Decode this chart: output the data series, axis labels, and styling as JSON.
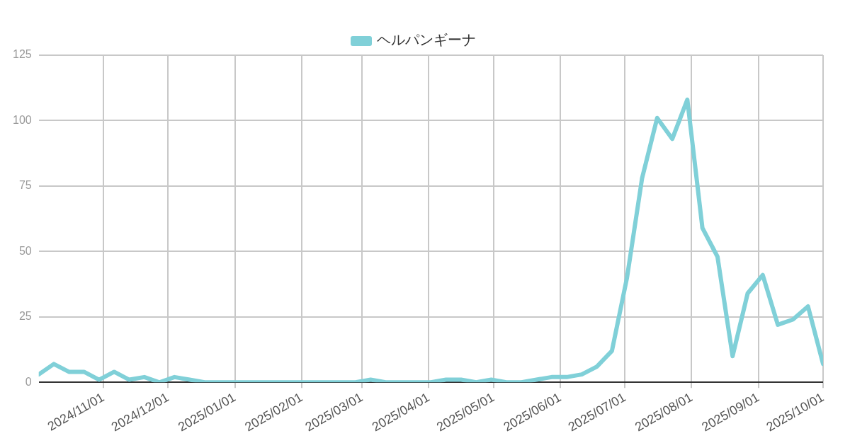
{
  "chart_data": {
    "type": "line",
    "x": [
      "2024-10-02",
      "2024-10-09",
      "2024-10-16",
      "2024-10-23",
      "2024-10-30",
      "2024-11-06",
      "2024-11-13",
      "2024-11-20",
      "2024-11-27",
      "2024-12-04",
      "2024-12-11",
      "2024-12-18",
      "2024-12-25",
      "2025-01-01",
      "2025-01-08",
      "2025-01-15",
      "2025-01-22",
      "2025-01-29",
      "2025-02-05",
      "2025-02-12",
      "2025-02-19",
      "2025-02-26",
      "2025-03-05",
      "2025-03-12",
      "2025-03-19",
      "2025-03-26",
      "2025-04-02",
      "2025-04-09",
      "2025-04-16",
      "2025-04-23",
      "2025-04-30",
      "2025-05-07",
      "2025-05-14",
      "2025-05-21",
      "2025-05-28",
      "2025-06-04",
      "2025-06-11",
      "2025-06-18",
      "2025-06-25",
      "2025-07-02",
      "2025-07-09",
      "2025-07-16",
      "2025-07-23",
      "2025-07-30",
      "2025-08-06",
      "2025-08-13",
      "2025-08-20",
      "2025-08-27",
      "2025-09-03",
      "2025-09-10",
      "2025-09-17",
      "2025-09-24",
      "2025-10-01"
    ],
    "series": [
      {
        "name": "ヘルパンギーナ",
        "color": "#80d0d8",
        "values": [
          3,
          7,
          4,
          4,
          1,
          4,
          1,
          2,
          0,
          2,
          1,
          0,
          0,
          0,
          0,
          0,
          0,
          0,
          0,
          0,
          0,
          0,
          1,
          0,
          0,
          0,
          0,
          1,
          1,
          0,
          1,
          0,
          0,
          1,
          2,
          2,
          3,
          6,
          12,
          40,
          78,
          101,
          93,
          108,
          59,
          48,
          10,
          34,
          41,
          22,
          24,
          29,
          7
        ]
      }
    ],
    "xlim": [
      "2024-10-02",
      "2025-10-01"
    ],
    "xticks": [
      {
        "value": "2024-11-01",
        "label": "2024/11/01"
      },
      {
        "value": "2024-12-01",
        "label": "2024/12/01"
      },
      {
        "value": "2025-01-01",
        "label": "2025/01/01"
      },
      {
        "value": "2025-02-01",
        "label": "2025/02/01"
      },
      {
        "value": "2025-03-01",
        "label": "2025/03/01"
      },
      {
        "value": "2025-04-01",
        "label": "2025/04/01"
      },
      {
        "value": "2025-05-01",
        "label": "2025/05/01"
      },
      {
        "value": "2025-06-01",
        "label": "2025/06/01"
      },
      {
        "value": "2025-07-01",
        "label": "2025/07/01"
      },
      {
        "value": "2025-08-01",
        "label": "2025/08/01"
      },
      {
        "value": "2025-09-01",
        "label": "2025/09/01"
      },
      {
        "value": "2025-10-01",
        "label": "2025/10/01"
      }
    ],
    "ylim": [
      0,
      125
    ],
    "yticks": [
      0,
      25,
      50,
      75,
      100,
      125
    ],
    "grid": true,
    "legend": "top",
    "marker": "none",
    "line_style": "solid"
  }
}
